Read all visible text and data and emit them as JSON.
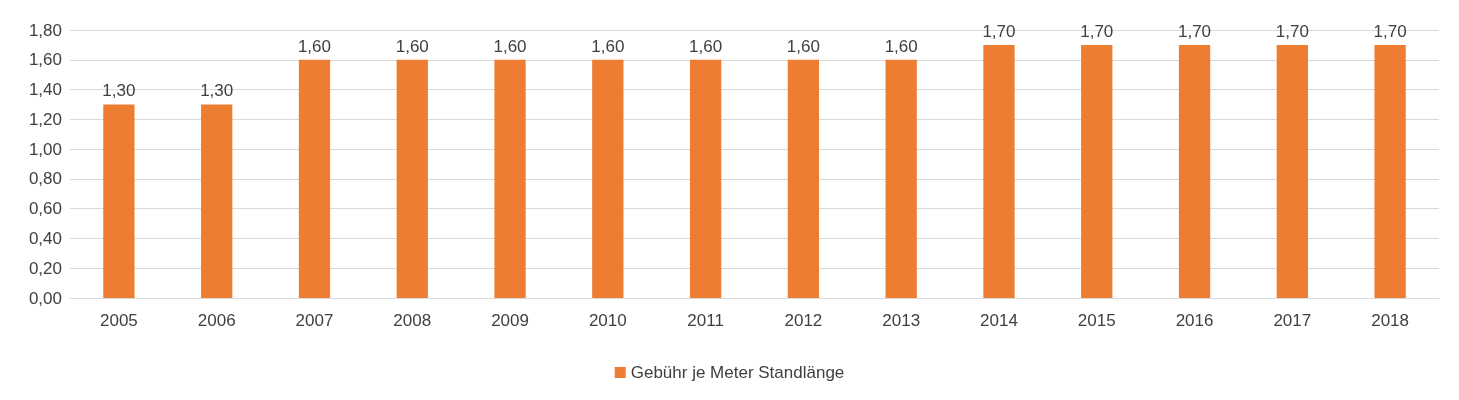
{
  "chart_data": {
    "type": "bar",
    "categories": [
      "2005",
      "2006",
      "2007",
      "2008",
      "2009",
      "2010",
      "2011",
      "2012",
      "2013",
      "2014",
      "2015",
      "2016",
      "2017",
      "2018"
    ],
    "series": [
      {
        "name": "Gebühr je Meter Standlänge",
        "color": "#ed7d31",
        "values": [
          1.3,
          1.3,
          1.6,
          1.6,
          1.6,
          1.6,
          1.6,
          1.6,
          1.6,
          1.7,
          1.7,
          1.7,
          1.7,
          1.7
        ],
        "value_labels": [
          "1,30",
          "1,30",
          "1,60",
          "1,60",
          "1,60",
          "1,60",
          "1,60",
          "1,60",
          "1,60",
          "1,70",
          "1,70",
          "1,70",
          "1,70",
          "1,70"
        ]
      }
    ],
    "ylim": [
      0,
      1.8
    ],
    "yticks": [
      {
        "value": 0,
        "label": "0,00"
      },
      {
        "value": 0.2,
        "label": "0,20"
      },
      {
        "value": 0.4,
        "label": "0,40"
      },
      {
        "value": 0.6,
        "label": "0,60"
      },
      {
        "value": 0.8,
        "label": "0,80"
      },
      {
        "value": 1,
        "label": "1,00"
      },
      {
        "value": 1.2,
        "label": "1,20"
      },
      {
        "value": 1.4,
        "label": "1,40"
      },
      {
        "value": 1.6,
        "label": "1,60"
      },
      {
        "value": 1.8,
        "label": "1,80"
      }
    ],
    "grid": "y",
    "legend": "bottom"
  }
}
